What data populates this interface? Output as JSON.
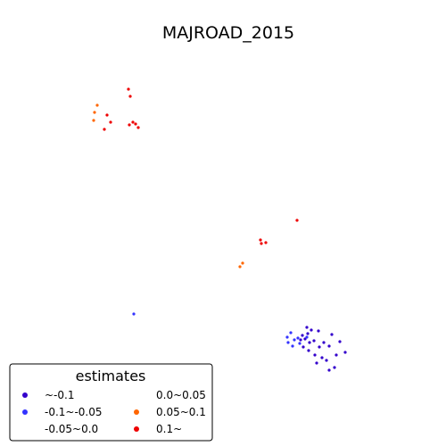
{
  "chart_data": {
    "type": "scatter",
    "title": "MAJROAD_2015",
    "xlabel": "",
    "ylabel": "",
    "axes_visible": false,
    "grid": false,
    "legend": {
      "title": "estimates",
      "placement": "bottom-left",
      "columns": 2,
      "entries": [
        {
          "label": "~-0.1",
          "color": "#3300cc"
        },
        {
          "label": "-0.1~-0.05",
          "color": "#3333ff"
        },
        {
          "label": "-0.05~0.0",
          "color": "#ffffff"
        },
        {
          "label": "0.0~0.05",
          "color": "#ffffff"
        },
        {
          "label": "0.05~0.1",
          "color": "#ff6600"
        },
        {
          "label": "0.1~",
          "color": "#ee0000"
        }
      ]
    },
    "series": [
      {
        "name": "~-0.1",
        "color": "#3300cc",
        "points": [
          [
            344,
            367
          ],
          [
            349,
            370
          ],
          [
            357,
            371
          ],
          [
            339,
            376
          ],
          [
            345,
            374
          ],
          [
            372,
            375
          ],
          [
            337,
            381
          ],
          [
            342,
            380
          ],
          [
            347,
            384
          ],
          [
            352,
            382
          ],
          [
            363,
            384
          ],
          [
            369,
            388
          ],
          [
            381,
            383
          ],
          [
            340,
            389
          ],
          [
            346,
            393
          ],
          [
            358,
            389
          ],
          [
            387,
            395
          ],
          [
            353,
            398
          ],
          [
            361,
            401
          ],
          [
            366,
            404
          ],
          [
            377,
            398
          ],
          [
            355,
            407
          ],
          [
            369,
            415
          ],
          [
            375,
            412
          ]
        ]
      },
      {
        "name": "-0.1~-0.05",
        "color": "#3333ff",
        "points": [
          [
            150,
            352
          ],
          [
            326,
            373
          ],
          [
            322,
            378
          ],
          [
            330,
            381
          ],
          [
            323,
            384
          ],
          [
            328,
            388
          ],
          [
            336,
            385
          ],
          [
            344,
            378
          ],
          [
            334,
            379
          ]
        ]
      },
      {
        "name": "0.05~0.1",
        "color": "#ff6600",
        "points": [
          [
            109,
            118
          ],
          [
            106,
            126
          ],
          [
            105,
            135
          ],
          [
            272,
            295
          ],
          [
            269,
            299
          ]
        ]
      },
      {
        "name": "0.1~",
        "color": "#ee0000",
        "points": [
          [
            144,
            100
          ],
          [
            146,
            108
          ],
          [
            120,
            129
          ],
          [
            124,
            137
          ],
          [
            117,
            145
          ],
          [
            145,
            140
          ],
          [
            149,
            137
          ],
          [
            152,
            139
          ],
          [
            155,
            143
          ],
          [
            333,
            247
          ],
          [
            292,
            269
          ],
          [
            298,
            272
          ],
          [
            293,
            273
          ]
        ]
      }
    ]
  }
}
